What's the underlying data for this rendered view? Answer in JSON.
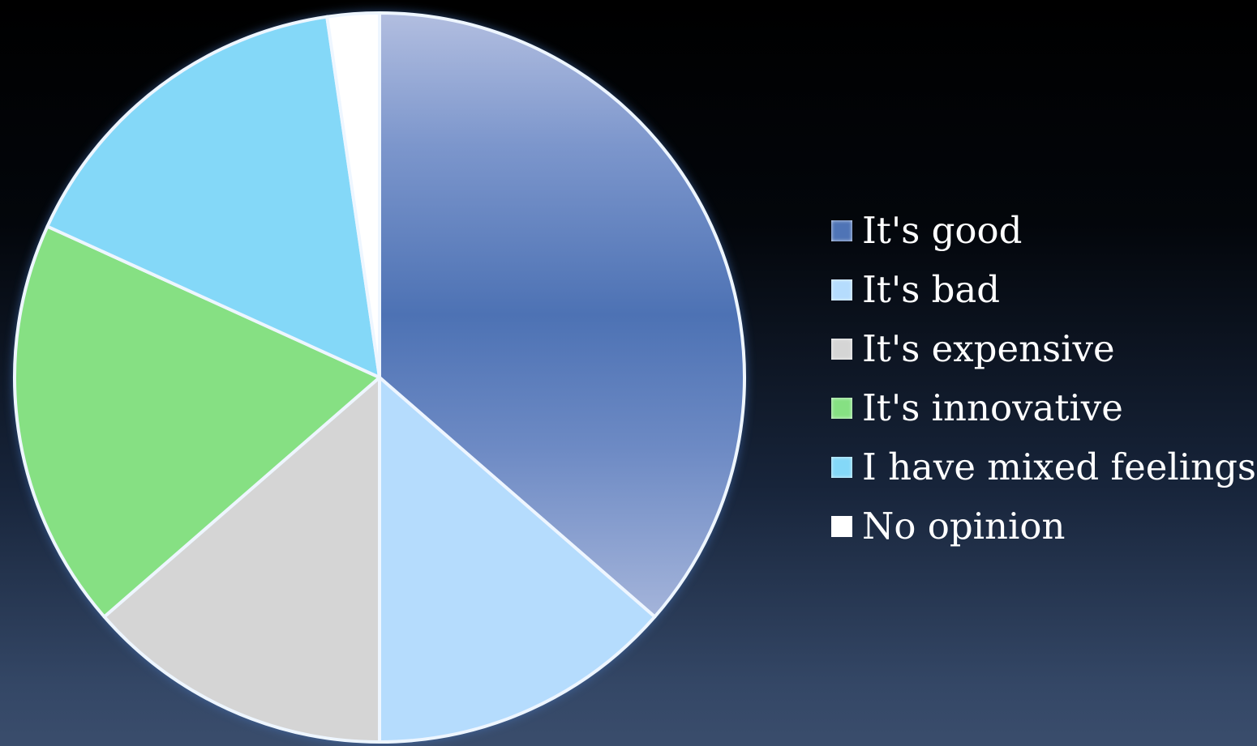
{
  "chart_data": {
    "type": "pie",
    "title": "",
    "start_angle_deg": 0,
    "direction": "clockwise",
    "legend_position": "right",
    "slices": [
      {
        "label": "It's good",
        "value": 36.4,
        "color": "#4f74b6"
      },
      {
        "label": "It's bad",
        "value": 13.6,
        "color": "#b5dcfd"
      },
      {
        "label": "It's expensive",
        "value": 13.6,
        "color": "#d5d5d5"
      },
      {
        "label": "It's innovative",
        "value": 18.2,
        "color": "#86e083"
      },
      {
        "label": "I have mixed feelings",
        "value": 15.9,
        "color": "#84d8f8"
      },
      {
        "label": "No opinion",
        "value": 2.3,
        "color": "#ffffff"
      }
    ]
  }
}
